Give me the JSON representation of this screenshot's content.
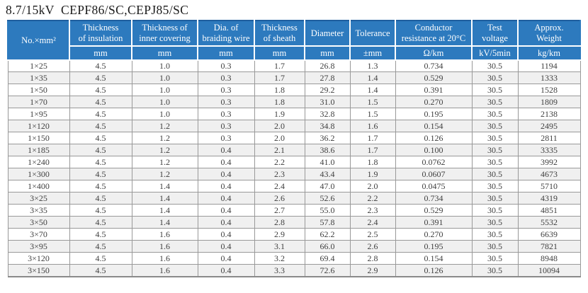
{
  "page": {
    "title": "8.7/15kV  CEPF86/SC,CEPJ85/SC"
  },
  "colors": {
    "header_bg": "#2d7abe",
    "header_text": "#ffffff",
    "header_top_edge": "#1e5e9e",
    "row_alt": "#f0f0f0",
    "grid_line": "#999999",
    "body_text": "#404040"
  },
  "table": {
    "columns": [
      {
        "label": "No.×mm²",
        "unit": ""
      },
      {
        "label": "Thickness\nof insulation",
        "unit": "mm"
      },
      {
        "label": "Thickness of\ninner covering",
        "unit": "mm"
      },
      {
        "label": "Dia. of\nbraiding wire",
        "unit": "mm"
      },
      {
        "label": "Thickness\nof sheath",
        "unit": "mm"
      },
      {
        "label": "Diameter",
        "unit": "mm"
      },
      {
        "label": "Tolerance",
        "unit": "±mm"
      },
      {
        "label": "Conductor\nresistance at 20°C",
        "unit": "Ω/km"
      },
      {
        "label": "Test\nvoltage",
        "unit": "kV/5min"
      },
      {
        "label": "Approx.\nWeight",
        "unit": "kg/km"
      }
    ],
    "rows": [
      [
        "1×25",
        "4.5",
        "1.0",
        "0.3",
        "1.7",
        "26.8",
        "1.3",
        "0.734",
        "30.5",
        "1194"
      ],
      [
        "1×35",
        "4.5",
        "1.0",
        "0.3",
        "1.7",
        "27.8",
        "1.4",
        "0.529",
        "30.5",
        "1333"
      ],
      [
        "1×50",
        "4.5",
        "1.0",
        "0.3",
        "1.8",
        "29.2",
        "1.4",
        "0.391",
        "30.5",
        "1528"
      ],
      [
        "1×70",
        "4.5",
        "1.0",
        "0.3",
        "1.8",
        "31.0",
        "1.5",
        "0.270",
        "30.5",
        "1809"
      ],
      [
        "1×95",
        "4.5",
        "1.0",
        "0.3",
        "1.9",
        "32.8",
        "1.5",
        "0.195",
        "30.5",
        "2138"
      ],
      [
        "1×120",
        "4.5",
        "1.2",
        "0.3",
        "2.0",
        "34.8",
        "1.6",
        "0.154",
        "30.5",
        "2495"
      ],
      [
        "1×150",
        "4.5",
        "1.2",
        "0.3",
        "2.0",
        "36.2",
        "1.7",
        "0.126",
        "30.5",
        "2811"
      ],
      [
        "1×185",
        "4.5",
        "1.2",
        "0.4",
        "2.1",
        "38.6",
        "1.7",
        "0.100",
        "30.5",
        "3335"
      ],
      [
        "1×240",
        "4.5",
        "1.2",
        "0.4",
        "2.2",
        "41.0",
        "1.8",
        "0.0762",
        "30.5",
        "3992"
      ],
      [
        "1×300",
        "4.5",
        "1.2",
        "0.4",
        "2.3",
        "43.4",
        "1.9",
        "0.0607",
        "30.5",
        "4673"
      ],
      [
        "1×400",
        "4.5",
        "1.4",
        "0.4",
        "2.4",
        "47.0",
        "2.0",
        "0.0475",
        "30.5",
        "5710"
      ],
      [
        "3×25",
        "4.5",
        "1.4",
        "0.4",
        "2.6",
        "52.6",
        "2.2",
        "0.734",
        "30.5",
        "4319"
      ],
      [
        "3×35",
        "4.5",
        "1.4",
        "0.4",
        "2.7",
        "55.0",
        "2.3",
        "0.529",
        "30.5",
        "4851"
      ],
      [
        "3×50",
        "4.5",
        "1.4",
        "0.4",
        "2.8",
        "57.8",
        "2.4",
        "0.391",
        "30.5",
        "5532"
      ],
      [
        "3×70",
        "4.5",
        "1.6",
        "0.4",
        "2.9",
        "62.2",
        "2.5",
        "0.270",
        "30.5",
        "6639"
      ],
      [
        "3×95",
        "4.5",
        "1.6",
        "0.4",
        "3.1",
        "66.0",
        "2.6",
        "0.195",
        "30.5",
        "7821"
      ],
      [
        "3×120",
        "4.5",
        "1.6",
        "0.4",
        "3.2",
        "69.4",
        "2.8",
        "0.154",
        "30.5",
        "8948"
      ],
      [
        "3×150",
        "4.5",
        "1.6",
        "0.4",
        "3.3",
        "72.6",
        "2.9",
        "0.126",
        "30.5",
        "10094"
      ]
    ]
  }
}
